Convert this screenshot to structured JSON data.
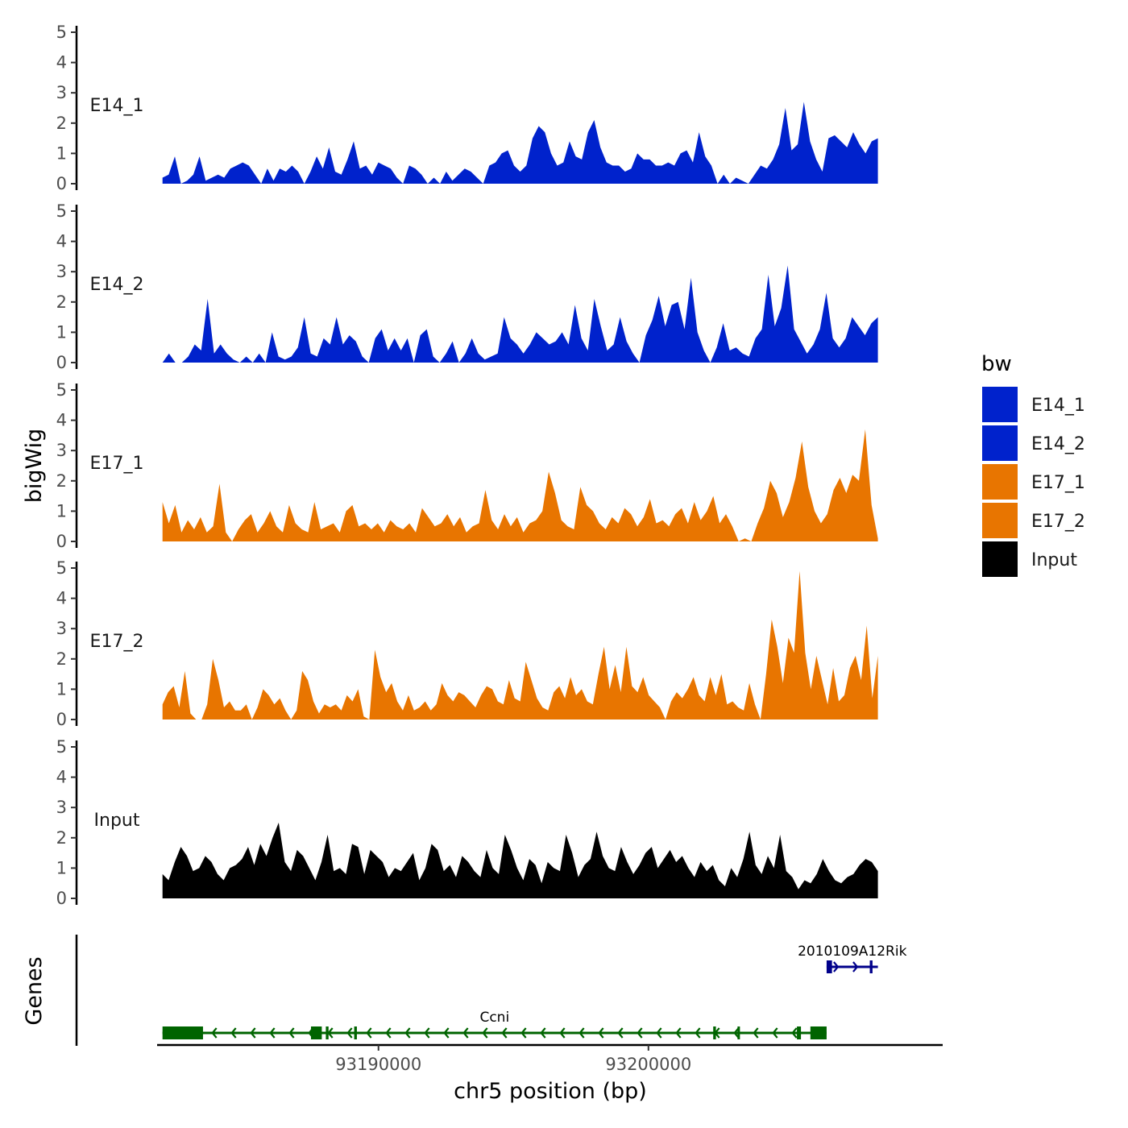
{
  "chart_data": {
    "type": "area",
    "title": "",
    "xlabel": "chr5 position (bp)",
    "ylabel": "bigWig",
    "gene_panel_label": "Genes",
    "xlim": [
      93181800,
      93210900
    ],
    "x_ticks": [
      93190000,
      93200000
    ],
    "x_tick_labels": [
      "93190000",
      "93200000"
    ],
    "ylim": [
      0,
      5
    ],
    "y_ticks": [
      0,
      1,
      2,
      3,
      4,
      5
    ],
    "y_tick_labels": [
      "0",
      "1",
      "2",
      "3",
      "4",
      "5"
    ],
    "legend": {
      "title": "bw",
      "position": "right",
      "entries": [
        {
          "label": "E14_1",
          "color": "#0022CC"
        },
        {
          "label": "E14_2",
          "color": "#0022CC"
        },
        {
          "label": "E17_1",
          "color": "#E87500"
        },
        {
          "label": "E17_2",
          "color": "#E87500"
        },
        {
          "label": "Input",
          "color": "#000000"
        }
      ]
    },
    "series": [
      {
        "name": "E14_1",
        "color": "#0022CC",
        "x_start": 93182000,
        "x_end": 93208500,
        "values": [
          0.2,
          0.3,
          0.9,
          0.0,
          0.1,
          0.3,
          0.9,
          0.1,
          0.2,
          0.3,
          0.2,
          0.5,
          0.6,
          0.7,
          0.6,
          0.3,
          0.0,
          0.5,
          0.1,
          0.5,
          0.4,
          0.6,
          0.4,
          0.0,
          0.4,
          0.9,
          0.5,
          1.2,
          0.4,
          0.3,
          0.8,
          1.4,
          0.5,
          0.6,
          0.3,
          0.7,
          0.6,
          0.5,
          0.2,
          0.0,
          0.6,
          0.5,
          0.3,
          0.0,
          0.2,
          0.0,
          0.4,
          0.1,
          0.3,
          0.5,
          0.4,
          0.2,
          0.0,
          0.6,
          0.7,
          1.0,
          1.1,
          0.6,
          0.4,
          0.6,
          1.5,
          1.9,
          1.7,
          1.0,
          0.6,
          0.7,
          1.4,
          0.9,
          0.8,
          1.7,
          2.1,
          1.2,
          0.7,
          0.6,
          0.6,
          0.4,
          0.5,
          1.0,
          0.8,
          0.8,
          0.6,
          0.6,
          0.7,
          0.6,
          1.0,
          1.1,
          0.7,
          1.7,
          0.9,
          0.6,
          0.0,
          0.3,
          0.0,
          0.2,
          0.1,
          0.0,
          0.3,
          0.6,
          0.5,
          0.8,
          1.3,
          2.5,
          1.1,
          1.3,
          2.7,
          1.4,
          0.8,
          0.4,
          1.5,
          1.6,
          1.4,
          1.2,
          1.7,
          1.3,
          1.0,
          1.4,
          1.5
        ]
      },
      {
        "name": "E14_2",
        "color": "#0022CC",
        "x_start": 93182000,
        "x_end": 93208500,
        "values": [
          0.0,
          0.3,
          0.0,
          0.0,
          0.2,
          0.6,
          0.4,
          2.1,
          0.3,
          0.6,
          0.3,
          0.1,
          0.0,
          0.2,
          0.0,
          0.3,
          0.0,
          1.0,
          0.2,
          0.1,
          0.2,
          0.5,
          1.5,
          0.3,
          0.2,
          0.8,
          0.6,
          1.5,
          0.6,
          0.9,
          0.7,
          0.2,
          0.0,
          0.8,
          1.1,
          0.4,
          0.8,
          0.4,
          0.8,
          0.0,
          0.9,
          1.1,
          0.2,
          0.0,
          0.3,
          0.7,
          0.0,
          0.3,
          0.8,
          0.3,
          0.1,
          0.2,
          0.3,
          1.5,
          0.8,
          0.6,
          0.3,
          0.6,
          1.0,
          0.8,
          0.6,
          0.7,
          1.0,
          0.6,
          1.9,
          0.8,
          0.4,
          2.1,
          1.2,
          0.4,
          0.6,
          1.5,
          0.7,
          0.3,
          0.0,
          0.9,
          1.4,
          2.2,
          1.2,
          1.9,
          2.0,
          1.1,
          2.8,
          1.0,
          0.4,
          0.0,
          0.5,
          1.3,
          0.4,
          0.5,
          0.3,
          0.2,
          0.8,
          1.1,
          2.9,
          1.2,
          1.8,
          3.2,
          1.1,
          0.7,
          0.3,
          0.6,
          1.1,
          2.3,
          0.8,
          0.5,
          0.8,
          1.5,
          1.2,
          0.9,
          1.3,
          1.5
        ]
      },
      {
        "name": "E17_1",
        "color": "#E87500",
        "x_start": 93182000,
        "x_end": 93208500,
        "values": [
          1.3,
          0.6,
          1.2,
          0.3,
          0.7,
          0.4,
          0.8,
          0.3,
          0.5,
          1.9,
          0.3,
          0.0,
          0.4,
          0.7,
          0.9,
          0.3,
          0.6,
          1.0,
          0.5,
          0.3,
          1.2,
          0.6,
          0.4,
          0.3,
          1.3,
          0.4,
          0.5,
          0.6,
          0.3,
          1.0,
          1.2,
          0.5,
          0.6,
          0.4,
          0.6,
          0.3,
          0.7,
          0.5,
          0.4,
          0.6,
          0.3,
          1.1,
          0.8,
          0.5,
          0.6,
          0.9,
          0.5,
          0.8,
          0.3,
          0.5,
          0.6,
          1.7,
          0.7,
          0.4,
          0.9,
          0.5,
          0.8,
          0.3,
          0.6,
          0.7,
          1.0,
          2.3,
          1.6,
          0.7,
          0.5,
          0.4,
          1.8,
          1.2,
          1.0,
          0.6,
          0.4,
          0.8,
          0.6,
          1.1,
          0.9,
          0.5,
          0.8,
          1.4,
          0.6,
          0.7,
          0.5,
          0.9,
          1.1,
          0.6,
          1.3,
          0.7,
          1.0,
          1.5,
          0.6,
          0.9,
          0.5,
          0.0,
          0.1,
          0.0,
          0.6,
          1.1,
          2.0,
          1.6,
          0.8,
          1.3,
          2.1,
          3.3,
          1.8,
          1.0,
          0.6,
          0.9,
          1.7,
          2.1,
          1.6,
          2.2,
          2.0,
          3.7,
          1.2,
          0.1
        ]
      },
      {
        "name": "E17_2",
        "color": "#E87500",
        "x_start": 93182000,
        "x_end": 93208500,
        "values": [
          0.5,
          0.9,
          1.1,
          0.4,
          1.6,
          0.2,
          0.0,
          0.0,
          0.5,
          2.0,
          1.3,
          0.4,
          0.6,
          0.3,
          0.3,
          0.5,
          0.0,
          0.4,
          1.0,
          0.8,
          0.5,
          0.7,
          0.3,
          0.0,
          0.3,
          1.6,
          1.3,
          0.6,
          0.2,
          0.5,
          0.4,
          0.5,
          0.3,
          0.8,
          0.6,
          1.0,
          0.1,
          0.0,
          2.3,
          1.4,
          0.9,
          1.2,
          0.6,
          0.3,
          0.8,
          0.3,
          0.4,
          0.6,
          0.3,
          0.5,
          1.2,
          0.8,
          0.6,
          0.9,
          0.8,
          0.6,
          0.4,
          0.8,
          1.1,
          1.0,
          0.6,
          0.5,
          1.3,
          0.7,
          0.6,
          1.9,
          1.3,
          0.7,
          0.4,
          0.3,
          0.9,
          1.1,
          0.7,
          1.4,
          0.8,
          1.0,
          0.6,
          0.5,
          1.5,
          2.4,
          1.0,
          1.8,
          0.9,
          2.4,
          1.1,
          0.9,
          1.4,
          0.8,
          0.6,
          0.4,
          0.0,
          0.6,
          0.9,
          0.7,
          1.0,
          1.4,
          0.8,
          0.6,
          1.4,
          0.8,
          1.5,
          0.5,
          0.6,
          0.4,
          0.3,
          1.2,
          0.5,
          0.0,
          1.5,
          3.3,
          2.4,
          1.2,
          2.7,
          2.2,
          4.9,
          2.2,
          1.0,
          2.1,
          1.3,
          0.5,
          1.7,
          0.6,
          0.8,
          1.7,
          2.1,
          1.3,
          3.1,
          0.7,
          2.1
        ]
      },
      {
        "name": "Input",
        "color": "#000000",
        "x_start": 93182000,
        "x_end": 93208500,
        "values": [
          0.8,
          0.6,
          1.2,
          1.7,
          1.4,
          0.9,
          1.0,
          1.4,
          1.2,
          0.8,
          0.6,
          1.0,
          1.1,
          1.3,
          1.7,
          1.1,
          1.8,
          1.4,
          2.0,
          2.5,
          1.2,
          0.9,
          1.6,
          1.4,
          1.0,
          0.6,
          1.2,
          2.1,
          0.9,
          1.0,
          0.8,
          1.8,
          1.7,
          0.8,
          1.6,
          1.4,
          1.2,
          0.7,
          1.0,
          0.9,
          1.2,
          1.5,
          0.6,
          1.0,
          1.8,
          1.6,
          0.9,
          1.1,
          0.7,
          1.4,
          1.2,
          0.9,
          0.7,
          1.6,
          1.0,
          0.8,
          2.1,
          1.6,
          1.0,
          0.6,
          1.3,
          1.1,
          0.5,
          1.2,
          1.0,
          0.9,
          2.1,
          1.5,
          0.7,
          1.1,
          1.3,
          2.2,
          1.4,
          1.0,
          0.9,
          1.7,
          1.2,
          0.8,
          1.1,
          1.5,
          1.7,
          1.0,
          1.3,
          1.6,
          1.2,
          1.4,
          1.0,
          0.7,
          1.2,
          0.9,
          1.1,
          0.6,
          0.4,
          1.0,
          0.7,
          1.3,
          2.2,
          1.1,
          0.8,
          1.4,
          1.0,
          2.1,
          0.9,
          0.7,
          0.3,
          0.6,
          0.5,
          0.8,
          1.3,
          0.9,
          0.6,
          0.5,
          0.7,
          0.8,
          1.1,
          1.3,
          1.2,
          0.9
        ]
      }
    ],
    "genes": [
      {
        "name": "Ccni",
        "strand": "-",
        "color": "#006400",
        "track": 0,
        "start": 93182000,
        "end": 93206600,
        "exons": [
          {
            "start": 93182000,
            "end": 93183500
          },
          {
            "start": 93187500,
            "end": 93187900
          },
          {
            "start": 93188050,
            "end": 93188150
          },
          {
            "start": 93189100,
            "end": 93189200
          },
          {
            "start": 93202400,
            "end": 93202500
          },
          {
            "start": 93203300,
            "end": 93203380
          },
          {
            "start": 93205500,
            "end": 93205650
          },
          {
            "start": 93206000,
            "end": 93206600
          }
        ]
      },
      {
        "name": "2010109A12Rik",
        "strand": "+",
        "color": "#00008B",
        "track": 1,
        "start": 93206600,
        "end": 93208500,
        "exons": [
          {
            "start": 93206600,
            "end": 93206800
          },
          {
            "start": 93208200,
            "end": 93208300
          }
        ]
      }
    ]
  }
}
